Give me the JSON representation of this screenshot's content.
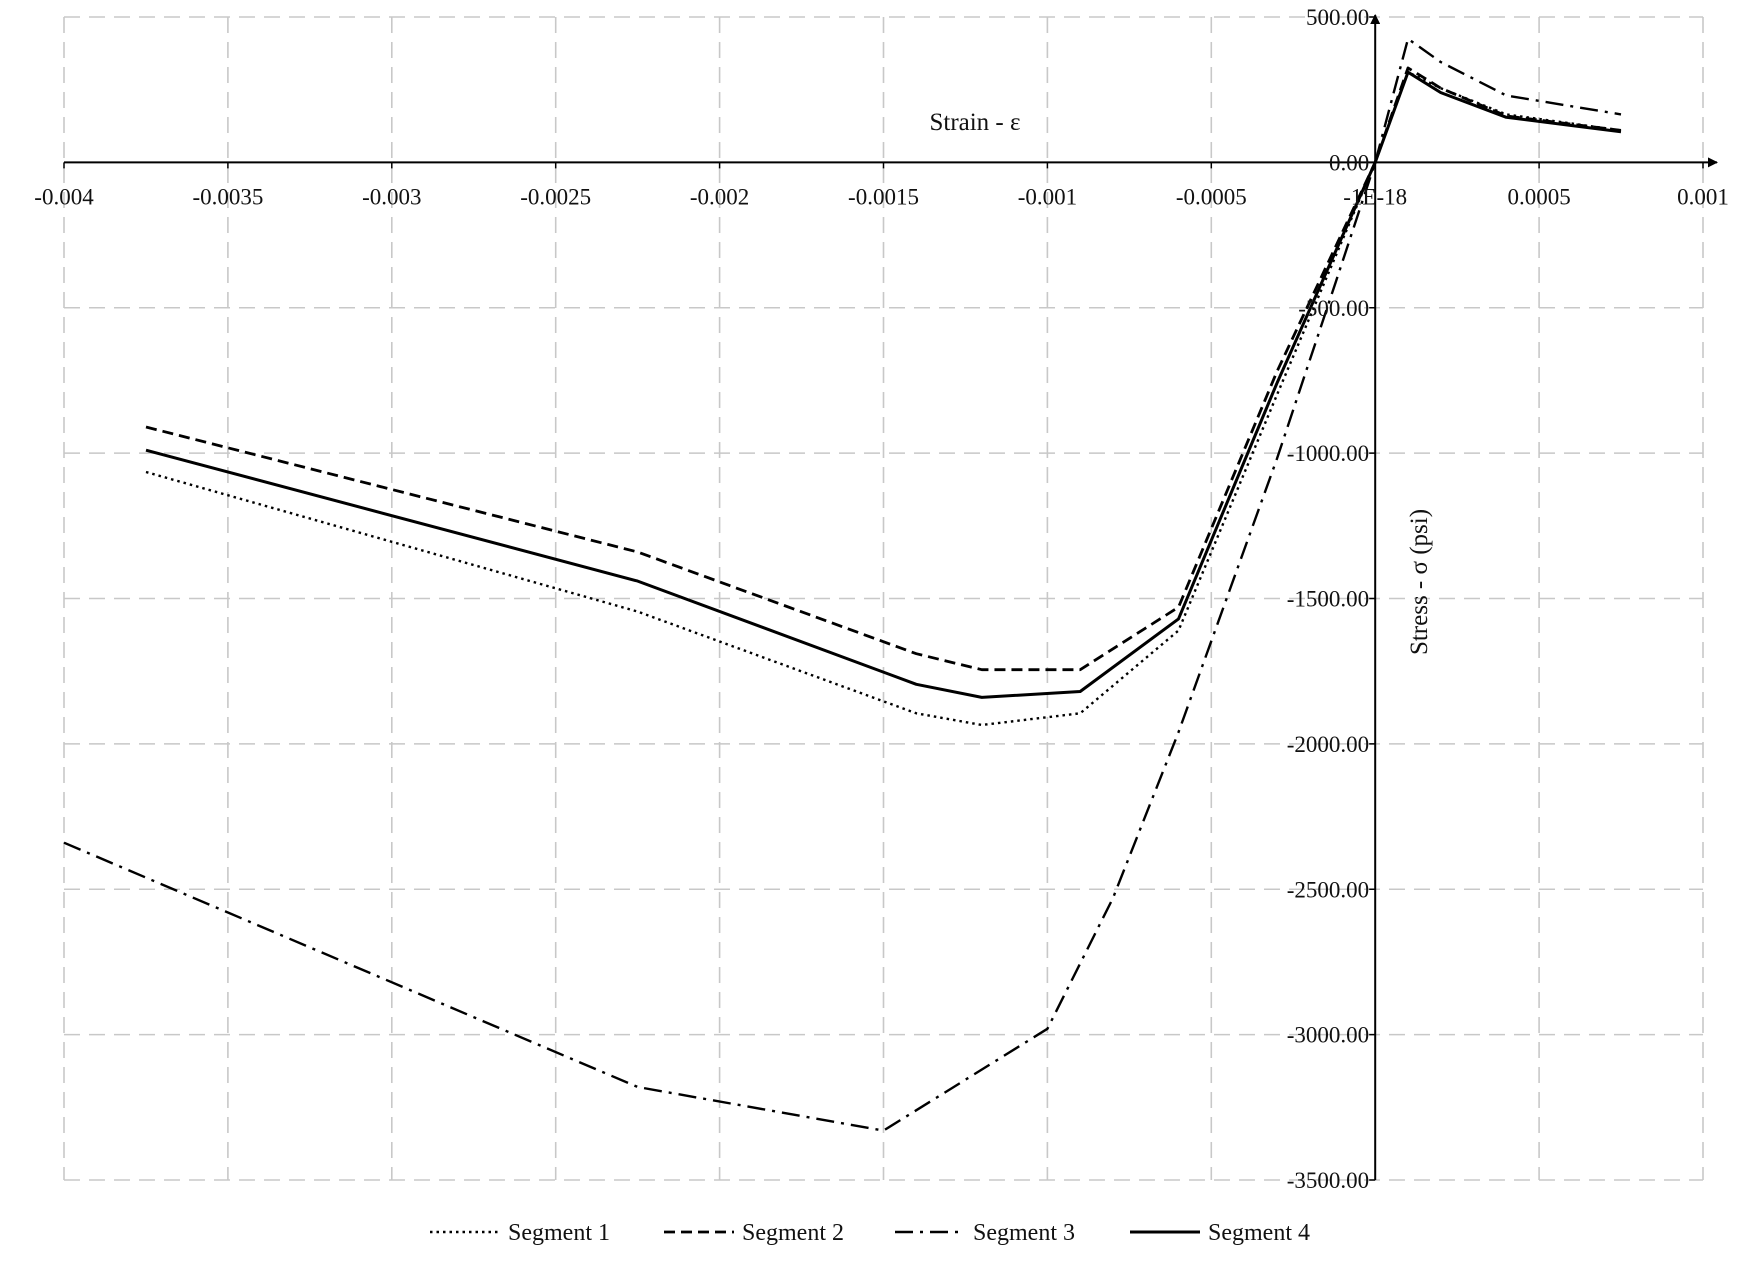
{
  "chart_data": {
    "type": "line",
    "xlabel": "Strain - ε",
    "ylabel": "Stress - σ (psi)",
    "xlim": [
      -0.004,
      0.001
    ],
    "ylim": [
      -3500,
      500
    ],
    "x_ticks": [
      -0.004,
      -0.0035,
      -0.003,
      -0.0025,
      -0.002,
      -0.0015,
      -0.001,
      -0.0005,
      0,
      0.0005,
      0.001
    ],
    "x_tick_labels": [
      "-0.004",
      "-0.0035",
      "-0.003",
      "-0.0025",
      "-0.002",
      "-0.0015",
      "-0.001",
      "-0.0005",
      "-1E-18",
      "0.0005",
      "0.001"
    ],
    "y_ticks": [
      500,
      0,
      -500,
      -1000,
      -1500,
      -2000,
      -2500,
      -3000,
      -3500
    ],
    "y_tick_labels": [
      "500.00",
      "0.00",
      "-500.00",
      "-1000.00",
      "-1500.00",
      "-2000.00",
      "-2500.00",
      "-3000.00",
      "-3500.00"
    ],
    "grid": true,
    "legend_position": "bottom",
    "series": [
      {
        "name": "Segment 1",
        "style": "dotted",
        "points": [
          [
            -0.00375,
            -1065
          ],
          [
            -0.00225,
            -1545
          ],
          [
            -0.0014,
            -1895
          ],
          [
            -0.0012,
            -1935
          ],
          [
            -0.0009,
            -1895
          ],
          [
            -0.0006,
            -1610
          ],
          [
            -0.0003,
            -800
          ],
          [
            0,
            0
          ],
          [
            0.0001,
            310
          ],
          [
            0.0002,
            255
          ],
          [
            0.0004,
            165
          ],
          [
            0.00075,
            110
          ]
        ]
      },
      {
        "name": "Segment 2",
        "style": "dashed",
        "points": [
          [
            -0.00375,
            -910
          ],
          [
            -0.00225,
            -1340
          ],
          [
            -0.0014,
            -1690
          ],
          [
            -0.0012,
            -1745
          ],
          [
            -0.0009,
            -1745
          ],
          [
            -0.0006,
            -1530
          ],
          [
            -0.0003,
            -720
          ],
          [
            0,
            0
          ],
          [
            0.0001,
            325
          ],
          [
            0.0002,
            255
          ],
          [
            0.0004,
            160
          ],
          [
            0.00075,
            110
          ]
        ]
      },
      {
        "name": "Segment 3",
        "style": "dash-dot",
        "points": [
          [
            -0.004,
            -2340
          ],
          [
            -0.00225,
            -3180
          ],
          [
            -0.0015,
            -3330
          ],
          [
            -0.001,
            -2980
          ],
          [
            -0.0008,
            -2530
          ],
          [
            -0.0006,
            -1960
          ],
          [
            -0.0003,
            -1020
          ],
          [
            -0.00012,
            -410
          ],
          [
            0,
            0
          ],
          [
            0.0001,
            425
          ],
          [
            0.0002,
            345
          ],
          [
            0.0004,
            230
          ],
          [
            0.00075,
            165
          ]
        ]
      },
      {
        "name": "Segment 4",
        "style": "solid",
        "points": [
          [
            -0.00375,
            -990
          ],
          [
            -0.00225,
            -1440
          ],
          [
            -0.0014,
            -1795
          ],
          [
            -0.0012,
            -1840
          ],
          [
            -0.0009,
            -1820
          ],
          [
            -0.0006,
            -1570
          ],
          [
            -0.0003,
            -760
          ],
          [
            0,
            0
          ],
          [
            0.0001,
            310
          ],
          [
            0.0002,
            240
          ],
          [
            0.0004,
            155
          ],
          [
            0.00075,
            105
          ]
        ]
      }
    ]
  }
}
